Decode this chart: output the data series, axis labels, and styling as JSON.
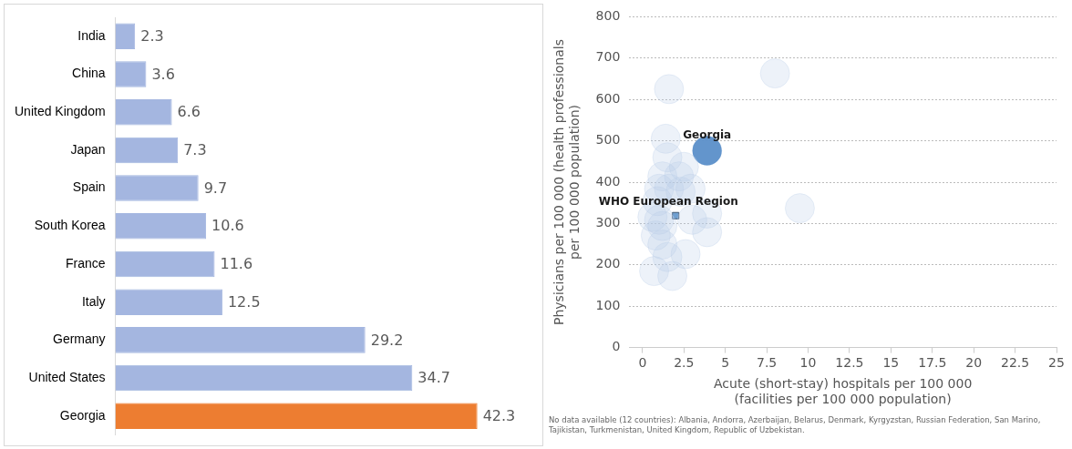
{
  "chart_data": [
    {
      "type": "bar",
      "orientation": "horizontal",
      "categories": [
        "India",
        "China",
        "United Kingdom",
        "Japan",
        "Spain",
        "South Korea",
        "France",
        "Italy",
        "Germany",
        "United States",
        "Georgia"
      ],
      "values": [
        2.3,
        3.6,
        6.6,
        7.3,
        9.7,
        10.6,
        11.6,
        12.5,
        29.2,
        34.7,
        42.3
      ],
      "colors": [
        "#a4b6e0",
        "#a4b6e0",
        "#a4b6e0",
        "#a4b6e0",
        "#a4b6e0",
        "#a4b6e0",
        "#a4b6e0",
        "#a4b6e0",
        "#a4b6e0",
        "#a4b6e0",
        "#ed7d31"
      ],
      "data_labels": true,
      "tick_labels": "y",
      "grid": false,
      "legend": false
    },
    {
      "type": "bubble",
      "xlabel": "Acute (short-stay) hospitals per 100 000\n(facilities per 100 000 population)",
      "ylabel": "Physicians per 100 000 (health professionals\nper 100 000 population)",
      "xlim": [
        -0.8,
        25
      ],
      "xticks": [
        0,
        2.5,
        5,
        7.5,
        10,
        12.5,
        15,
        17.5,
        20,
        22.5,
        25
      ],
      "ylim": [
        0,
        800
      ],
      "yticks": [
        0,
        100,
        200,
        300,
        400,
        500,
        600,
        700,
        800
      ],
      "grid": "y",
      "legend": false,
      "series": [
        {
          "color": "#b8cde8",
          "x": [
            8.0,
            1.6,
            1.4,
            3.9,
            9.5,
            0.7,
            1.8,
            2.6,
            3.9,
            3.9,
            3.0,
            2.5,
            1.5,
            1.2,
            2.2,
            1.0,
            0.9,
            1.0,
            1.2,
            0.8,
            1.2,
            1.5,
            0.6,
            1.6,
            2.3,
            2.9
          ],
          "values": [
            663,
            625,
            505,
            476,
            337,
            185,
            173,
            226,
            279,
            324,
            309,
            437,
            460,
            414,
            414,
            384,
            354,
            309,
            294,
            271,
            249,
            219,
            316,
            384,
            377,
            384
          ],
          "sizes": [
            1,
            1,
            1,
            1,
            1,
            1,
            1,
            1,
            1,
            1,
            1,
            1,
            1,
            1,
            1,
            1,
            1,
            1,
            1,
            1,
            1,
            1,
            1,
            1,
            1,
            1
          ],
          "colors": [
            "#b8cde8",
            "#b8cde8",
            "#b8cde8",
            "#5b8fc9",
            "#b8cde8",
            "#b8cde8",
            "#b8cde8",
            "#b8cde8",
            "#b8cde8",
            "#b8cde8",
            "#b8cde8",
            "#b8cde8",
            "#b8cde8",
            "#b8cde8",
            "#b8cde8",
            "#b8cde8",
            "#b8cde8",
            "#b8cde8",
            "#b8cde8",
            "#b8cde8",
            "#b8cde8",
            "#b8cde8",
            "#b8cde8",
            "#b8cde8",
            "#b8cde8",
            "#b8cde8"
          ]
        },
        {
          "type": "scatter",
          "marker": "square",
          "color": "#6f9fd0",
          "x": [
            2.0
          ],
          "values": [
            319
          ]
        }
      ],
      "annotations": [
        {
          "text": "Georgia",
          "x": 3.9,
          "y": 476
        },
        {
          "text": "WHO European Region",
          "x": 2.0,
          "y": 319
        },
        "No data available (12 countries): Albania, Andorra, Azerbaijan, Belarus, Denmark, Kyrgyzstan, Russian Federation, San Marino, Tajikistan, Turkmenistan, United Kingdom, Republic of Uzbekistan."
      ]
    }
  ]
}
